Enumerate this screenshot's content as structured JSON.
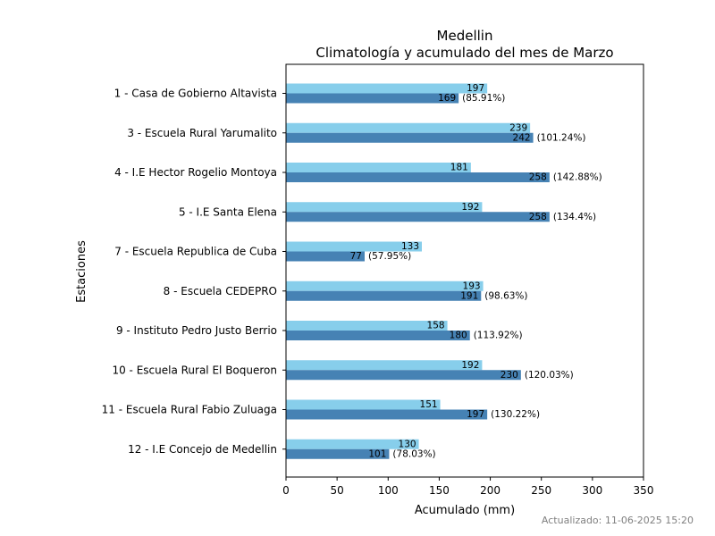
{
  "chart_data": {
    "type": "bar",
    "orientation": "horizontal",
    "title": "Medellin",
    "subtitle": "Climatología y acumulado del mes de Marzo",
    "xlabel": "Acumulado (mm)",
    "ylabel": "Estaciones",
    "xlim": [
      0,
      350
    ],
    "x_ticks": [
      0,
      50,
      100,
      150,
      200,
      250,
      300,
      350
    ],
    "grid": false,
    "categories": [
      "1 - Casa de Gobierno Altavista",
      "3 - Escuela Rural Yarumalito",
      "4 - I.E Hector Rogelio Montoya",
      "5 - I.E Santa Elena",
      "7 - Escuela Republica de Cuba",
      "8 - Escuela CEDEPRO",
      "9 - Instituto Pedro Justo Berrio",
      "10 - Escuela Rural El Boqueron",
      "11 - Escuela Rural Fabio Zuluaga",
      "12 - I.E Concejo de Medellin"
    ],
    "series": [
      {
        "color": "#87ceeb",
        "values": [
          197,
          239,
          181,
          192,
          133,
          193,
          158,
          192,
          151,
          130
        ]
      },
      {
        "color": "#4682b4",
        "values": [
          169,
          242,
          258,
          258,
          77,
          191,
          180,
          230,
          197,
          101
        ],
        "percent_labels": [
          "(85.91%)",
          "(101.24%)",
          "(142.88%)",
          "(134.4%)",
          "(57.95%)",
          "(98.63%)",
          "(113.92%)",
          "(120.03%)",
          "(130.22%)",
          "(78.03%)"
        ]
      }
    ]
  },
  "footer": {
    "updated": "Actualizado: 11-06-2025 15:20"
  }
}
